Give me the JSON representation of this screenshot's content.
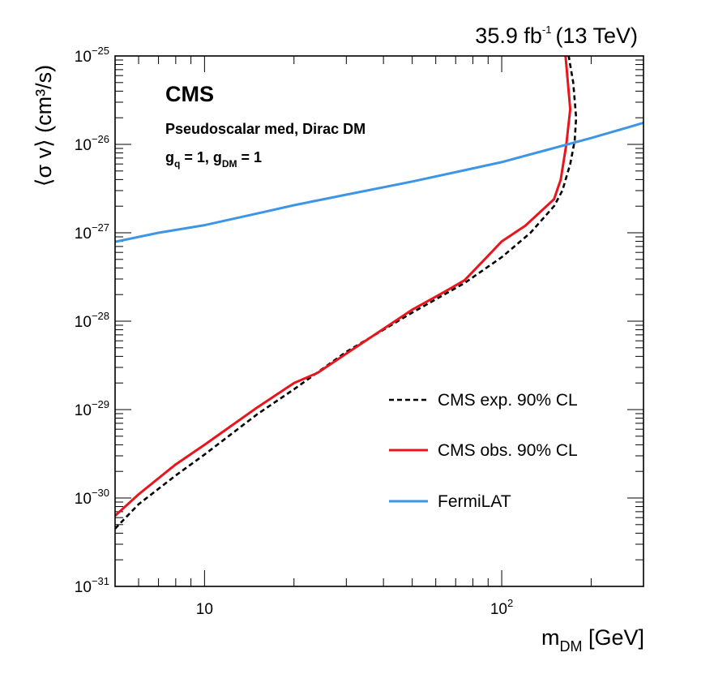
{
  "chart_data": {
    "type": "line",
    "lumi": {
      "value": "35.9 fb",
      "sup": "-1",
      "energy": "(13 TeV)"
    },
    "experiment": "CMS",
    "annotation": {
      "line1": "Pseudoscalar med, Dirac DM",
      "line2": {
        "a": "g",
        "a_sub": "q",
        "b": " = 1, g",
        "b_sub": "DM",
        "c": " = 1"
      }
    },
    "xaxis": {
      "label_main": "m",
      "label_sub": "DM",
      "label_unit": " [GeV]",
      "scale": "log",
      "range": [
        5,
        300
      ],
      "ticks": [
        {
          "value": 10,
          "base": "10",
          "exp": ""
        },
        {
          "value": 100,
          "base": "10",
          "exp": "2"
        }
      ]
    },
    "yaxis": {
      "label": "⟨σ v⟩ (cm³/s)",
      "scale": "log",
      "range": [
        1e-31,
        1e-25
      ],
      "ticks": [
        {
          "value": 1e-25,
          "base": "10",
          "exp": "−25"
        },
        {
          "value": 1e-26,
          "base": "10",
          "exp": "−26"
        },
        {
          "value": 1e-27,
          "base": "10",
          "exp": "−27"
        },
        {
          "value": 1e-28,
          "base": "10",
          "exp": "−28"
        },
        {
          "value": 1e-29,
          "base": "10",
          "exp": "−29"
        },
        {
          "value": 1e-30,
          "base": "10",
          "exp": "−30"
        },
        {
          "value": 1e-31,
          "base": "10",
          "exp": "−31"
        }
      ]
    },
    "grid": false,
    "legend_position": "bottom-right",
    "series": [
      {
        "name": "CMS exp. 90% CL",
        "color": "#000000",
        "dash": true,
        "points": [
          [
            5,
            4.5e-31
          ],
          [
            6,
            8.5e-31
          ],
          [
            8,
            1.8e-30
          ],
          [
            10,
            3.1e-30
          ],
          [
            15,
            8.8e-30
          ],
          [
            20,
            1.7e-29
          ],
          [
            30,
            4.5e-29
          ],
          [
            50,
            1.25e-28
          ],
          [
            75,
            2.7e-28
          ],
          [
            100,
            5.3e-28
          ],
          [
            125,
            1e-27
          ],
          [
            150,
            2e-27
          ],
          [
            160,
            3e-27
          ],
          [
            170,
            6e-27
          ],
          [
            176,
            1.1e-26
          ],
          [
            178,
            2e-26
          ],
          [
            174,
            5e-26
          ],
          [
            168,
            1e-25
          ]
        ]
      },
      {
        "name": "CMS obs. 90% CL",
        "color": "#e8161c",
        "dash": false,
        "points": [
          [
            5,
            6.3e-31
          ],
          [
            6,
            1.1e-30
          ],
          [
            8,
            2.4e-30
          ],
          [
            10,
            4e-30
          ],
          [
            15,
            1.05e-29
          ],
          [
            20,
            2e-29
          ],
          [
            24,
            2.6e-29
          ],
          [
            30,
            4.3e-29
          ],
          [
            50,
            1.35e-28
          ],
          [
            65,
            2.2e-28
          ],
          [
            75,
            2.9e-28
          ],
          [
            90,
            5.5e-28
          ],
          [
            100,
            8e-28
          ],
          [
            120,
            1.2e-27
          ],
          [
            150,
            2.4e-27
          ],
          [
            158,
            4e-27
          ],
          [
            165,
            1e-26
          ],
          [
            170,
            2.5e-26
          ],
          [
            167,
            5e-26
          ],
          [
            164,
            1e-25
          ]
        ]
      },
      {
        "name": "FermiLAT",
        "color": "#3d95e6",
        "dash": false,
        "points": [
          [
            5,
            7.9e-28
          ],
          [
            7,
            1e-27
          ],
          [
            10,
            1.22e-27
          ],
          [
            15,
            1.65e-27
          ],
          [
            20,
            2.05e-27
          ],
          [
            30,
            2.7e-27
          ],
          [
            50,
            3.8e-27
          ],
          [
            75,
            5.1e-27
          ],
          [
            100,
            6.3e-27
          ],
          [
            150,
            9.1e-27
          ],
          [
            200,
            1.18e-26
          ],
          [
            300,
            1.75e-26
          ]
        ]
      }
    ]
  }
}
